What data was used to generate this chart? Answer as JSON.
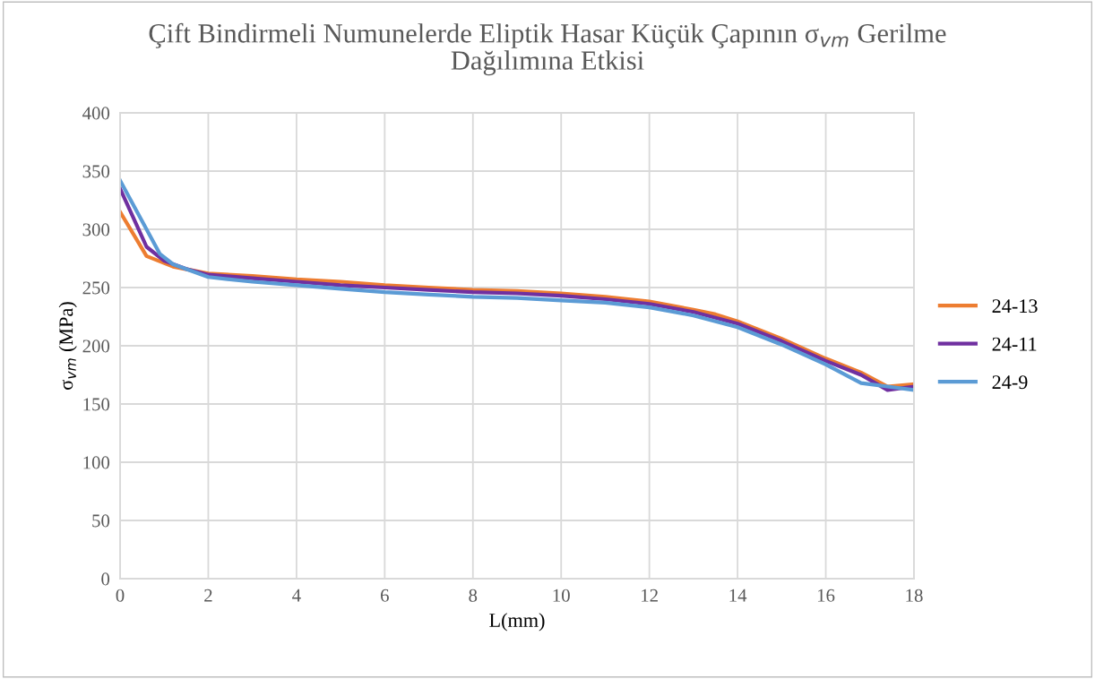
{
  "chart_data": {
    "type": "line",
    "title": "Çift Bindirmeli Numunelerde Eliptik Hasar Küçük Çapının σ$_{vm}$ Gerilme\nDağılımına Etkisi",
    "xlabel": "L(mm)",
    "ylabel": "σ$_{vm}$ (MPa)",
    "xlim": [
      0,
      18
    ],
    "xticks": [
      0,
      2,
      4,
      6,
      8,
      10,
      12,
      14,
      16,
      18
    ],
    "ylim": [
      0,
      400
    ],
    "yticks": [
      0,
      50,
      100,
      150,
      200,
      250,
      300,
      350,
      400
    ],
    "grid": true,
    "legend": "right",
    "marker": "none",
    "line_style": "solid",
    "series": [
      {
        "name": "24-13",
        "color": "#ed7d31",
        "x": [
          0,
          0.6,
          1.2,
          2,
          3,
          4,
          5,
          6,
          7,
          8,
          9,
          10,
          11,
          12,
          13,
          13.5,
          14,
          15,
          16,
          16.8,
          17.4,
          18
        ],
        "values": [
          315,
          277,
          268,
          262,
          260,
          257,
          255,
          252,
          250,
          248,
          247,
          245,
          242,
          238,
          231,
          227,
          221,
          206,
          189,
          177,
          165,
          167
        ]
      },
      {
        "name": "24-11",
        "color": "#7030a0",
        "x": [
          0,
          0.6,
          1.0,
          1.5,
          2,
          3,
          4,
          5,
          6,
          7,
          8,
          9,
          10,
          11,
          12,
          13,
          14,
          15,
          16,
          16.8,
          17.4,
          18
        ],
        "values": [
          335,
          285,
          273,
          266,
          261,
          258,
          255,
          252,
          250,
          248,
          246,
          245,
          243,
          240,
          236,
          229,
          219,
          204,
          187,
          175,
          162,
          165
        ]
      },
      {
        "name": "24-9",
        "color": "#5b9bd5",
        "x": [
          0,
          0.9,
          1.2,
          2,
          3,
          4,
          5,
          6,
          7,
          8,
          9,
          10,
          11,
          12,
          13,
          14,
          15,
          16,
          16.8,
          17.4,
          18
        ],
        "values": [
          342,
          279,
          270,
          259,
          255,
          252,
          249,
          246,
          244,
          242,
          241,
          239,
          237,
          233,
          226,
          216,
          201,
          184,
          168,
          165,
          162
        ]
      }
    ]
  }
}
